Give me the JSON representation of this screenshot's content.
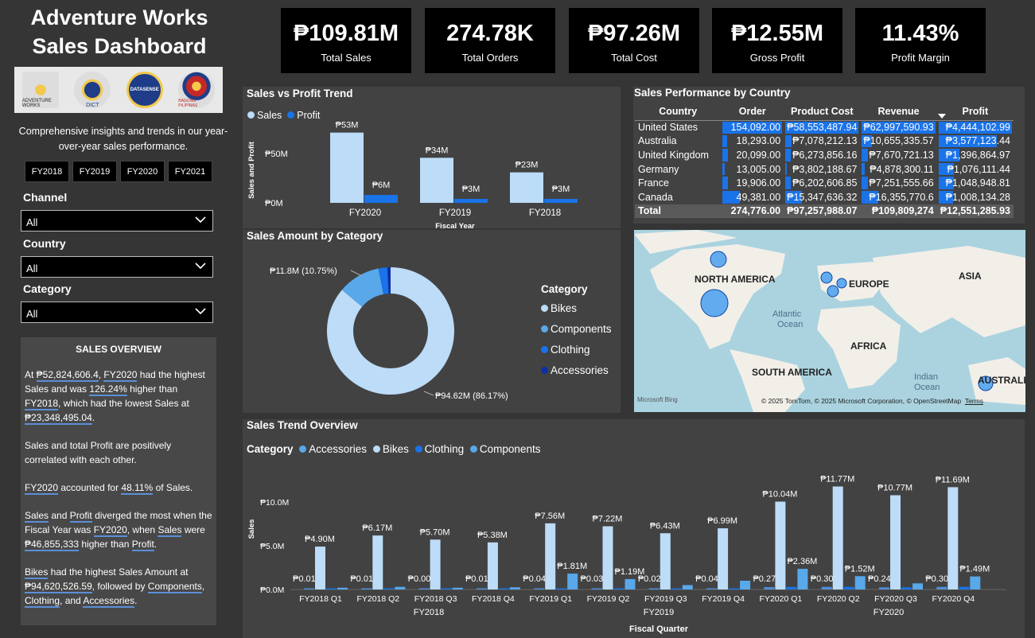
{
  "dashboard": {
    "title_line1": "Adventure Works",
    "title_line2": "Sales Dashboard",
    "description": "Comprehensive insights and trends in our year-over-year sales performance.",
    "logos": [
      "ADVENTURE WORKS",
      "DICT",
      "DATASENSE",
      "BAGONG PILIPINAS"
    ]
  },
  "fiscal_years": [
    "FY2018",
    "FY2019",
    "FY2020",
    "FY2021"
  ],
  "filters": {
    "channel_label": "Channel",
    "channel_value": "All",
    "country_label": "Country",
    "country_value": "All",
    "category_label": "Category",
    "category_value": "All"
  },
  "overview": {
    "heading": "SALES OVERVIEW",
    "p1": {
      "a": "At ",
      "b": "₱52,824,606.4",
      "c": ", ",
      "d": "FY2020",
      "e": " had the highest Sales and was ",
      "f": "126.24%",
      "g": " higher than ",
      "h": "FY2018",
      "i": ", which had the lowest Sales at ",
      "j": "₱23,348,495.04",
      "k": "."
    },
    "p2": "Sales and total Profit are positively correlated with each other.",
    "p3": {
      "a": "FY2020",
      "b": " accounted for ",
      "c": "48.11%",
      "d": " of Sales."
    },
    "p4": {
      "a": "Sales",
      "b": " and ",
      "c": "Profit",
      "d": " diverged the most when the Fiscal Year was ",
      "e": "FY2020",
      "f": ", when ",
      "g": "Sales",
      "h": " were ",
      "i": "₱46,855,333",
      "j": " higher than ",
      "k": "Profit",
      "l": "."
    },
    "p5": {
      "a": "Bikes",
      "b": " had the highest Sales Amount at ",
      "c": "₱94,620,526.59",
      "d": ", followed by ",
      "e": "Components",
      "f": ", ",
      "g": "Clothing",
      "h": ", and ",
      "i": "Accessories",
      "j": "."
    }
  },
  "kpis": [
    {
      "value": "₱109.81M",
      "label": "Total Sales"
    },
    {
      "value": "274.78K",
      "label": "Total Orders"
    },
    {
      "value": "₱97.26M",
      "label": "Total Cost"
    },
    {
      "value": "₱12.55M",
      "label": "Gross Profit"
    },
    {
      "value": "11.43%",
      "label": "Profit Margin"
    }
  ],
  "colors": {
    "sales": "#bcdcf8",
    "profit": "#1a73e8",
    "bikes": "#bcdcf8",
    "components": "#58a8ea",
    "clothing": "#1a73e8",
    "accessories": "#0d2fa8"
  },
  "svp": {
    "title": "Sales vs Profit Trend",
    "legend_sales": "Sales",
    "legend_profit": "Profit",
    "ylabel": "Sales and Profit",
    "xlabel": "Fiscal Year",
    "yticks": [
      "₱50M",
      "₱0M"
    ]
  },
  "category_panel": {
    "title": "Sales Amount by Category",
    "legend_title": "Category",
    "legend": [
      "Bikes",
      "Components",
      "Clothing",
      "Accessories"
    ],
    "label_small": "₱11.8M (10.75%)",
    "label_large": "₱94.62M (86.17%)"
  },
  "perf": {
    "title": "Sales Performance by Country",
    "headers": [
      "Country",
      "Order",
      "Product Cost",
      "Revenue",
      "Profit"
    ],
    "rows": [
      {
        "country": "United States",
        "order": "154,092.00",
        "cost": "₱58,553,487.94",
        "revenue": "₱62,997,590.93",
        "profit": "₱4,444,102.99",
        "p": [
          1,
          1,
          1,
          1
        ]
      },
      {
        "country": "Australia",
        "order": "18,293.00",
        "cost": "₱7,078,212.13",
        "revenue": "₱10,655,335.57",
        "profit": "₱3,577,123.44",
        "p": [
          0.12,
          0.12,
          0.17,
          0.8
        ]
      },
      {
        "country": "United Kingdom",
        "order": "20,099.00",
        "cost": "₱6,273,856.16",
        "revenue": "₱7,670,721.13",
        "profit": "₱1,396,864.97",
        "p": [
          0.13,
          0.11,
          0.12,
          0.31
        ]
      },
      {
        "country": "Germany",
        "order": "13,005.00",
        "cost": "₱3,802,188.67",
        "revenue": "₱4,878,300.11",
        "profit": "₱1,076,111.44",
        "p": [
          0.08,
          0.06,
          0.08,
          0.24
        ]
      },
      {
        "country": "France",
        "order": "19,906.00",
        "cost": "₱6,202,606.85",
        "revenue": "₱7,251,555.66",
        "profit": "₱1,048,948.81",
        "p": [
          0.13,
          0.11,
          0.12,
          0.24
        ]
      },
      {
        "country": "Canada",
        "order": "49,381.00",
        "cost": "₱15,347,636.32",
        "revenue": "₱16,355,770.6",
        "profit": "₱1,008,134.28",
        "p": [
          0.32,
          0.26,
          0.26,
          0.23
        ]
      }
    ],
    "total": {
      "label": "Total",
      "order": "274,776.00",
      "cost": "₱97,257,988.07",
      "revenue": "₱109,809,274",
      "profit": "₱12,551,285.93"
    }
  },
  "map": {
    "labels": [
      "NORTH AMERICA",
      "EUROPE",
      "ASIA",
      "AFRICA",
      "SOUTH AMERICA",
      "Atlantic",
      "Ocean",
      "Indian",
      "Ocean",
      "AUSTRALI"
    ],
    "attribution": "© 2025 TomTom, © 2025 Microsoft Corporation, © OpenStreetMap",
    "terms": "Terms",
    "bing": "Microsoft Bing"
  },
  "trend": {
    "title": "Sales Trend Overview",
    "legend_title": "Category",
    "legend": [
      "Accessories",
      "Bikes",
      "Clothing",
      "Components"
    ],
    "ylabel": "Sales",
    "xlabel": "Fiscal Quarter",
    "yticks": [
      "₱10.0M",
      "₱5.0M",
      "₱0.0M"
    ],
    "years": [
      "FY2018",
      "FY2019",
      "FY2020"
    ]
  },
  "chart_data": [
    {
      "type": "bar",
      "title": "Sales vs Profit Trend",
      "categories": [
        "FY2020",
        "FY2019",
        "FY2018"
      ],
      "series": [
        {
          "name": "Sales",
          "values": [
            53,
            34,
            23
          ],
          "labels": [
            "₱53M",
            "₱34M",
            "₱23M"
          ]
        },
        {
          "name": "Profit",
          "values": [
            6,
            3,
            3
          ],
          "labels": [
            "₱6M",
            "₱3M",
            "₱3M"
          ]
        }
      ],
      "xlabel": "Fiscal Year",
      "ylabel": "Sales and Profit",
      "ylim": [
        0,
        60
      ]
    },
    {
      "type": "pie",
      "title": "Sales Amount by Category",
      "categories": [
        "Bikes",
        "Components",
        "Clothing",
        "Accessories"
      ],
      "values": [
        86.17,
        10.75,
        2.25,
        0.83
      ]
    },
    {
      "type": "bar",
      "title": "Sales Trend Overview",
      "categories": [
        "FY2018 Q1",
        "FY2018 Q2",
        "FY2018 Q3",
        "FY2018 Q4",
        "FY2019 Q1",
        "FY2019 Q2",
        "FY2019 Q3",
        "FY2019 Q4",
        "FY2020 Q1",
        "FY2020 Q2",
        "FY2020 Q3",
        "FY2020 Q4"
      ],
      "series": [
        {
          "name": "Accessories",
          "values": [
            0.01,
            0.01,
            0.0,
            0.01,
            0.04,
            0.03,
            0.02,
            0.04,
            0.27,
            0.3,
            0.24,
            0.3
          ],
          "labels": [
            "₱0.01M",
            "₱0.01M",
            "₱0.00M",
            "₱0.01M",
            "₱0.04M",
            "₱0.03M",
            "₱0.02M",
            "₱0.04M",
            "₱0.27M",
            "₱0.30M",
            "₱0.24M",
            "₱0.30M"
          ]
        },
        {
          "name": "Bikes",
          "values": [
            4.9,
            6.17,
            5.7,
            5.38,
            7.56,
            7.22,
            6.43,
            6.99,
            10.04,
            11.77,
            10.77,
            11.69
          ],
          "labels": [
            "₱4.90M",
            "₱6.17M",
            "₱5.70M",
            "₱5.38M",
            "₱7.56M",
            "₱7.22M",
            "₱6.43M",
            "₱6.99M",
            "₱10.04M",
            "₱11.77M",
            "₱10.77M",
            "₱11.69M"
          ]
        },
        {
          "name": "Clothing",
          "values": [
            0.05,
            0.05,
            0.05,
            0.05,
            0.1,
            0.1,
            0.1,
            0.1,
            0.3,
            0.3,
            0.25,
            0.3
          ],
          "labels": [
            "",
            "",
            "",
            "",
            "",
            "",
            "",
            "",
            "",
            "",
            "",
            ""
          ]
        },
        {
          "name": "Components",
          "values": [
            0.2,
            0.3,
            0.2,
            0.25,
            1.81,
            1.19,
            0.5,
            1.0,
            2.36,
            1.52,
            0.7,
            1.49
          ],
          "labels": [
            "",
            "",
            "",
            "",
            "₱1.81M",
            "₱1.19M",
            "",
            "",
            "₱2.36M",
            "₱1.52M",
            "",
            "₱1.49M"
          ]
        }
      ],
      "xlabel": "Fiscal Quarter",
      "ylabel": "Sales",
      "ylim": [
        0,
        12
      ]
    }
  ]
}
